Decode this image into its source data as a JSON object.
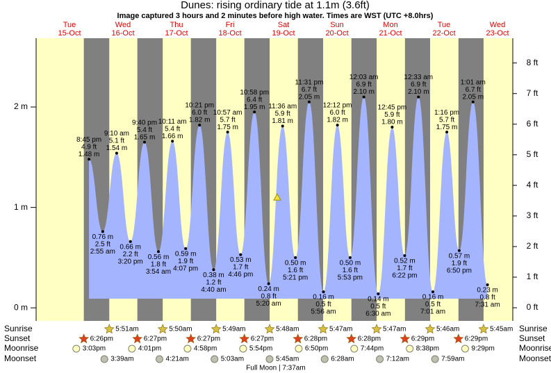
{
  "chart_data": {
    "type": "tide",
    "title": "Dunes: rising  ordinary tide at 1.1m (3.6ft)",
    "subtitle": "Image captured 3 hours and 2 minutes before high water. Times are WST (UTC +8.0hrs)",
    "days": [
      {
        "weekday": "Tue",
        "date": "15-Oct"
      },
      {
        "weekday": "Wed",
        "date": "16-Oct"
      },
      {
        "weekday": "Thu",
        "date": "17-Oct"
      },
      {
        "weekday": "Fri",
        "date": "18-Oct"
      },
      {
        "weekday": "Sat",
        "date": "19-Oct"
      },
      {
        "weekday": "Sun",
        "date": "20-Oct"
      },
      {
        "weekday": "Mon",
        "date": "21-Oct"
      },
      {
        "weekday": "Tue",
        "date": "22-Oct"
      },
      {
        "weekday": "Wed",
        "date": "23-Oct"
      }
    ],
    "events": {
      "times": [
        "8:45 pm",
        "2:55 am",
        "9:10 am",
        "3:20 pm",
        "9:40 pm",
        "3:54 am",
        "10:11 am",
        "4:07 pm",
        "10:21 pm",
        "4:40 am",
        "10:57 am",
        "4:46 pm",
        "10:58 pm",
        "5:20 am",
        "11:36 am",
        "5:21 pm",
        "11:31 pm",
        "5:56 am",
        "12:12 pm",
        "5:53 pm",
        "12:03 am",
        "6:30 am",
        "12:45 pm",
        "6:22 pm",
        "12:33 am",
        "7:01 am",
        "1:16 pm",
        "6:50 pm",
        "1:01 am",
        "7:31 am"
      ],
      "values": [
        1.48,
        0.76,
        1.54,
        0.66,
        1.65,
        0.56,
        1.66,
        0.59,
        1.82,
        0.38,
        1.75,
        0.53,
        1.95,
        0.24,
        1.81,
        0.5,
        2.05,
        0.16,
        1.82,
        0.5,
        2.1,
        0.14,
        1.8,
        0.52,
        2.1,
        0.16,
        1.75,
        0.57,
        2.05,
        0.23
      ],
      "value_labels": [
        "1.48 m",
        "0.76 m",
        "1.54 m",
        "0.66 m",
        "1.65 m",
        "0.56 m",
        "1.66 m",
        "0.59 m",
        "1.82 m",
        "0.38 m",
        "1.75 m",
        "0.53 m",
        "1.95 m",
        "0.24 m",
        "1.81 m",
        "0.50 m",
        "2.05 m",
        "0.16 m",
        "1.82 m",
        "0.50 m",
        "2.10 m",
        "0.14 m",
        "1.80 m",
        "0.52 m",
        "2.10 m",
        "0.16 m",
        "1.75 m",
        "0.57 m",
        "2.05 m",
        "0.23 m"
      ],
      "ft_labels": [
        "4.9 ft",
        "2.5 ft",
        "5.1 ft",
        "2.2 ft",
        "5.4 ft",
        "1.8 ft",
        "5.4 ft",
        "1.9 ft",
        "6.0 ft",
        "1.2 ft",
        "5.7 ft",
        "1.7 ft",
        "6.4 ft",
        "0.8 ft",
        "5.9 ft",
        "1.6 ft",
        "6.7 ft",
        "0.5 ft",
        "6.0 ft",
        "1.6 ft",
        "6.9 ft",
        "0.5 ft",
        "5.9 ft",
        "1.7 ft",
        "6.9 ft",
        "0.5 ft",
        "5.7 ft",
        "1.9 ft",
        "6.7 ft",
        "0.8 ft"
      ]
    },
    "current_height": 1.1,
    "ylim": [
      -0.13,
      2.685
    ],
    "yticks": [
      {
        "value": 0,
        "label": "0 m"
      },
      {
        "value": 1,
        "label": "1 m"
      },
      {
        "value": 2,
        "label": "2 m"
      }
    ],
    "y2lim": [
      -0.43,
      8.81
    ],
    "y2ticks": [
      {
        "value": 0,
        "label": "0 ft"
      },
      {
        "value": 1,
        "label": "1 ft"
      },
      {
        "value": 2,
        "label": "2 ft"
      },
      {
        "value": 3,
        "label": "3 ft"
      },
      {
        "value": 4,
        "label": "4 ft"
      },
      {
        "value": 5,
        "label": "5 ft"
      },
      {
        "value": 6,
        "label": "6 ft"
      },
      {
        "value": 7,
        "label": "7 ft"
      },
      {
        "value": 8,
        "label": "8 ft"
      }
    ],
    "colors": {
      "day": "#ffffc4",
      "night": "#808080",
      "water": "#a4b4ff"
    },
    "astro": [
      {
        "name": "Sunrise",
        "times": [
          null,
          "5:51am",
          "5:50am",
          "5:49am",
          "5:48am",
          "5:47am",
          "5:47am",
          "5:46am",
          "5:45am"
        ]
      },
      {
        "name": "Sunset",
        "times": [
          "6:26pm",
          "6:27pm",
          "6:27pm",
          "6:27pm",
          "6:28pm",
          "6:28pm",
          "6:29pm",
          "6:29pm",
          null
        ]
      },
      {
        "name": "Moonrise",
        "times": [
          "3:03pm",
          "4:01pm",
          "4:58pm",
          "5:54pm",
          "6:50pm",
          "7:44pm",
          "8:38pm",
          "9:29pm",
          null
        ]
      },
      {
        "name": "Moonset",
        "times": [
          null,
          "3:39am",
          "4:21am",
          "5:03am",
          "5:45am",
          "6:28am",
          "7:12am",
          "7:59am",
          null
        ]
      }
    ],
    "moon_phase": "Full Moon | 7:37am"
  }
}
